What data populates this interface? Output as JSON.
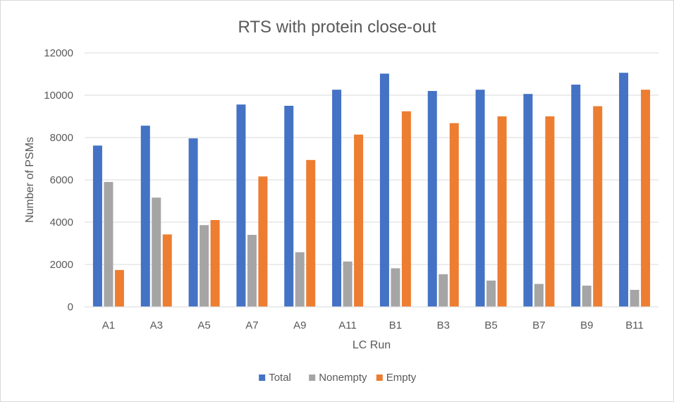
{
  "chart_data": {
    "type": "bar",
    "title": "RTS with protein close-out",
    "xlabel": "LC Run",
    "ylabel": "Number of PSMs",
    "ylim": [
      0,
      12000
    ],
    "yticks": [
      0,
      2000,
      4000,
      6000,
      8000,
      10000,
      12000
    ],
    "ytick_labels": [
      "0",
      "2000",
      "4000",
      "6000",
      "8000",
      "10000",
      "12000"
    ],
    "grid": true,
    "legend_position": "bottom",
    "categories": [
      "A1",
      "A3",
      "A5",
      "A7",
      "A9",
      "A11",
      "B1",
      "B3",
      "B5",
      "B7",
      "B9",
      "B11"
    ],
    "series": [
      {
        "name": "Total",
        "color": "#4472c4",
        "values": [
          7620,
          8560,
          7960,
          9560,
          9500,
          10260,
          11020,
          10200,
          10260,
          10060,
          10500,
          11060
        ]
      },
      {
        "name": "Nonempty",
        "color": "#a5a5a5",
        "values": [
          5900,
          5160,
          3860,
          3400,
          2580,
          2140,
          1820,
          1540,
          1240,
          1080,
          1000,
          800
        ]
      },
      {
        "name": "Empty",
        "color": "#ed7d31",
        "values": [
          1740,
          3420,
          4100,
          6160,
          6940,
          8140,
          9240,
          8680,
          9000,
          9000,
          9480,
          10260
        ]
      }
    ]
  }
}
